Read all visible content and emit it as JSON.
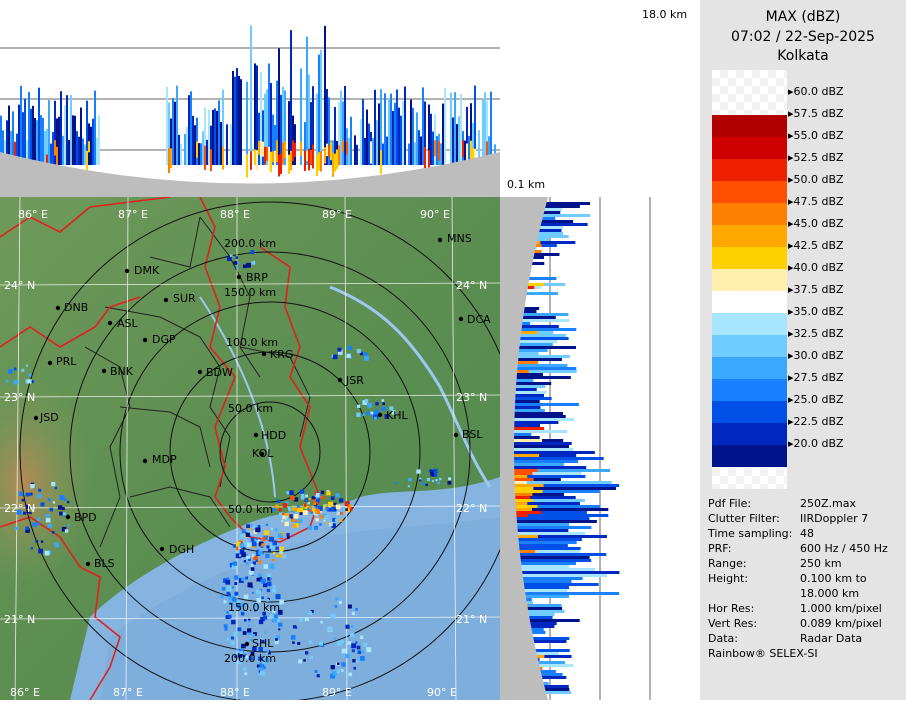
{
  "title": {
    "product": "MAX (dBZ)",
    "datetime": "07:02 / 22-Sep-2025",
    "station": "Kolkata"
  },
  "cross_section": {
    "top_label": "18.0 km",
    "bottom_label": "0.1 km"
  },
  "legend": {
    "levels": [
      {
        "label": "60.0 dBZ",
        "color": ""
      },
      {
        "label": "57.5 dBZ",
        "color": "#b00000"
      },
      {
        "label": "55.0 dBZ",
        "color": "#d00000"
      },
      {
        "label": "52.5 dBZ",
        "color": "#ee2000"
      },
      {
        "label": "50.0 dBZ",
        "color": "#ff5000"
      },
      {
        "label": "47.5 dBZ",
        "color": "#ff8000"
      },
      {
        "label": "45.0 dBZ",
        "color": "#ffa800"
      },
      {
        "label": "42.5 dBZ",
        "color": "#ffd000"
      },
      {
        "label": "40.0 dBZ",
        "color": "#fff0b0"
      },
      {
        "label": "37.5 dBZ",
        "color": "#ffffff"
      },
      {
        "label": "35.0 dBZ",
        "color": "#a8e6ff"
      },
      {
        "label": "32.5 dBZ",
        "color": "#70ccff"
      },
      {
        "label": "30.0 dBZ",
        "color": "#3aa8ff"
      },
      {
        "label": "27.5 dBZ",
        "color": "#1880ff"
      },
      {
        "label": "25.0 dBZ",
        "color": "#0050e8"
      },
      {
        "label": "22.5 dBZ",
        "color": "#0028c0"
      },
      {
        "label": "20.0 dBZ",
        "color": "#00138a"
      }
    ]
  },
  "info": [
    {
      "key": "Pdf File:",
      "value": "250Z.max"
    },
    {
      "key": "Clutter Filter:",
      "value": "IIRDoppler 7"
    },
    {
      "key": "Time sampling:",
      "value": "48"
    },
    {
      "key": "PRF:",
      "value": "600 Hz / 450 Hz"
    },
    {
      "key": "Range:",
      "value": "250 km"
    },
    {
      "key": "Height:",
      "value": "0.100 km to"
    },
    {
      "key": "",
      "value": "18.000 km"
    },
    {
      "key": "Hor Res:",
      "value": "1.000 km/pixel"
    },
    {
      "key": "Vert Res:",
      "value": "0.089 km/pixel"
    },
    {
      "key": "Data:",
      "value": "Radar Data"
    }
  ],
  "credit": "Rainbow® SELEX-SI",
  "map": {
    "longitudes": [
      "86° E",
      "87° E",
      "88° E",
      "89° E",
      "90° E"
    ],
    "latitudes": [
      "24° N",
      "23° N",
      "22° N",
      "21° N"
    ],
    "rings": [
      "50.0 km",
      "100.0 km",
      "150.0 km",
      "200.0 km"
    ],
    "rings_south": [
      "150.0 km",
      "200.0 km"
    ],
    "places": [
      "MNS",
      "DMK",
      "BRP",
      "SUR",
      "DNB",
      "ASL",
      "DCA",
      "DGP",
      "KRG",
      "PRL",
      "BNK",
      "BDW",
      "JSR",
      "JSD",
      "KHL",
      "BSL",
      "HDD",
      "MDP",
      "KOL",
      "BPD",
      "DGH",
      "BLS",
      "SHL"
    ]
  }
}
